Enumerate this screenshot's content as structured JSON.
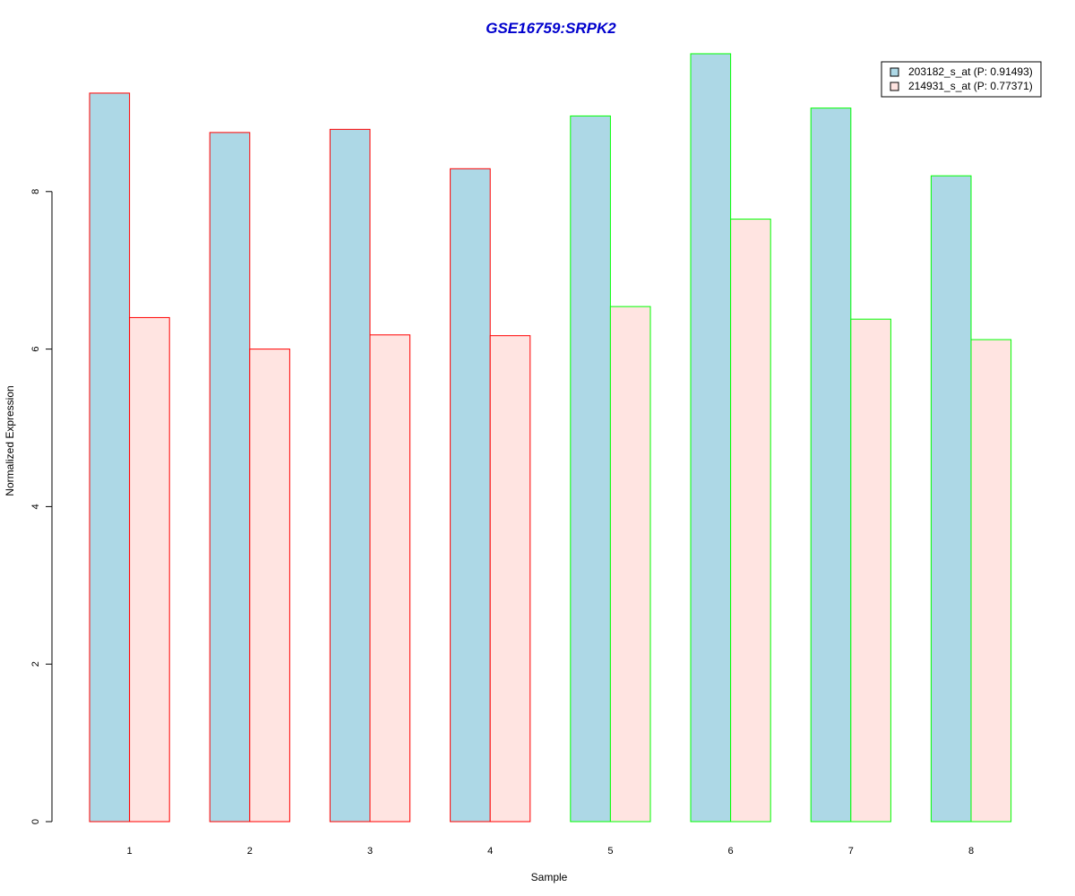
{
  "chart_data": {
    "type": "bar",
    "title": "GSE16759:SRPK2",
    "xlabel": "Sample",
    "ylabel": "Normalized Expression",
    "categories": [
      "1",
      "2",
      "3",
      "4",
      "5",
      "6",
      "7",
      "8"
    ],
    "series": [
      {
        "name": "203182_s_at (P: 0.91493)",
        "values": [
          9.25,
          8.75,
          8.79,
          8.29,
          8.96,
          9.75,
          9.06,
          8.2
        ],
        "fill": "#add8e6"
      },
      {
        "name": "214931_s_at (P: 0.77371)",
        "values": [
          6.4,
          6.0,
          6.18,
          6.17,
          6.54,
          7.65,
          6.38,
          6.12
        ],
        "fill": "#ffe4e1"
      }
    ],
    "group_border_colors": [
      "#ff0000",
      "#ff0000",
      "#ff0000",
      "#ff0000",
      "#00ff00",
      "#00ff00",
      "#00ff00",
      "#00ff00"
    ],
    "yticks": [
      0,
      2,
      4,
      6,
      8
    ],
    "ylim": [
      0,
      9.75
    ],
    "legend_position": "top-right",
    "grid": false,
    "colors": {
      "title": "#0000cd",
      "axis": "#000000"
    }
  }
}
